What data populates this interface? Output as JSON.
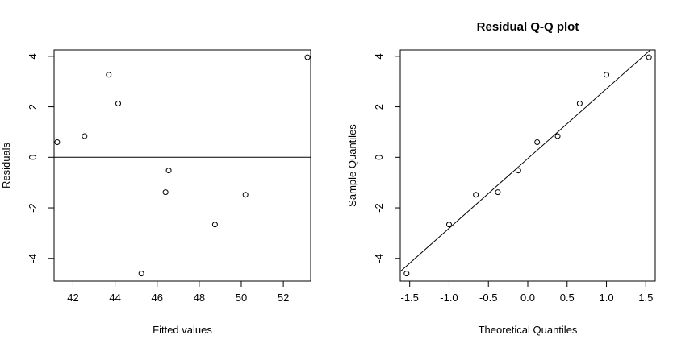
{
  "chart_data": [
    {
      "type": "scatter",
      "title": "",
      "xlabel": "Fitted values",
      "ylabel": "Residuals",
      "xlim": [
        41.1,
        53.3
      ],
      "ylim": [
        -4.9,
        4.25
      ],
      "xticks": [
        42,
        44,
        46,
        48,
        50,
        52
      ],
      "xtick_labels": [
        "42",
        "44",
        "46",
        "48",
        "50",
        "52"
      ],
      "yticks": [
        -4,
        -2,
        0,
        2,
        4
      ],
      "ytick_labels": [
        "-4",
        "-2",
        "0",
        "2",
        "4"
      ],
      "hline": 0,
      "grid": false,
      "points": [
        {
          "x": 41.25,
          "y": 0.6
        },
        {
          "x": 42.55,
          "y": 0.84
        },
        {
          "x": 43.7,
          "y": 3.27
        },
        {
          "x": 44.15,
          "y": 2.13
        },
        {
          "x": 45.25,
          "y": -4.6
        },
        {
          "x": 46.4,
          "y": -1.38
        },
        {
          "x": 46.55,
          "y": -0.52
        },
        {
          "x": 48.75,
          "y": -2.66
        },
        {
          "x": 50.2,
          "y": -1.48
        },
        {
          "x": 53.15,
          "y": 3.96
        }
      ]
    },
    {
      "type": "scatter",
      "title": "Residual Q-Q plot",
      "xlabel": "Theoretical Quantiles",
      "ylabel": "Sample Quantiles",
      "xlim": [
        -1.62,
        1.62
      ],
      "ylim": [
        -4.9,
        4.25
      ],
      "xticks": [
        -1.5,
        -1.0,
        -0.5,
        0.0,
        0.5,
        1.0,
        1.5
      ],
      "xtick_labels": [
        "-1.5",
        "-1.0",
        "-0.5",
        "0.0",
        "0.5",
        "1.0",
        "1.5"
      ],
      "yticks": [
        -4,
        -2,
        0,
        2,
        4
      ],
      "ytick_labels": [
        "-4",
        "-2",
        "0",
        "2",
        "4"
      ],
      "reference_line": {
        "intercept": -0.05,
        "slope": 2.76
      },
      "grid": false,
      "points": [
        {
          "x": -1.54,
          "y": -4.6
        },
        {
          "x": -1.0,
          "y": -2.66
        },
        {
          "x": -0.66,
          "y": -1.48
        },
        {
          "x": -0.38,
          "y": -1.38
        },
        {
          "x": -0.12,
          "y": -0.52
        },
        {
          "x": 0.12,
          "y": 0.6
        },
        {
          "x": 0.38,
          "y": 0.84
        },
        {
          "x": 0.66,
          "y": 2.13
        },
        {
          "x": 1.0,
          "y": 3.27
        },
        {
          "x": 1.54,
          "y": 3.96
        }
      ]
    }
  ]
}
